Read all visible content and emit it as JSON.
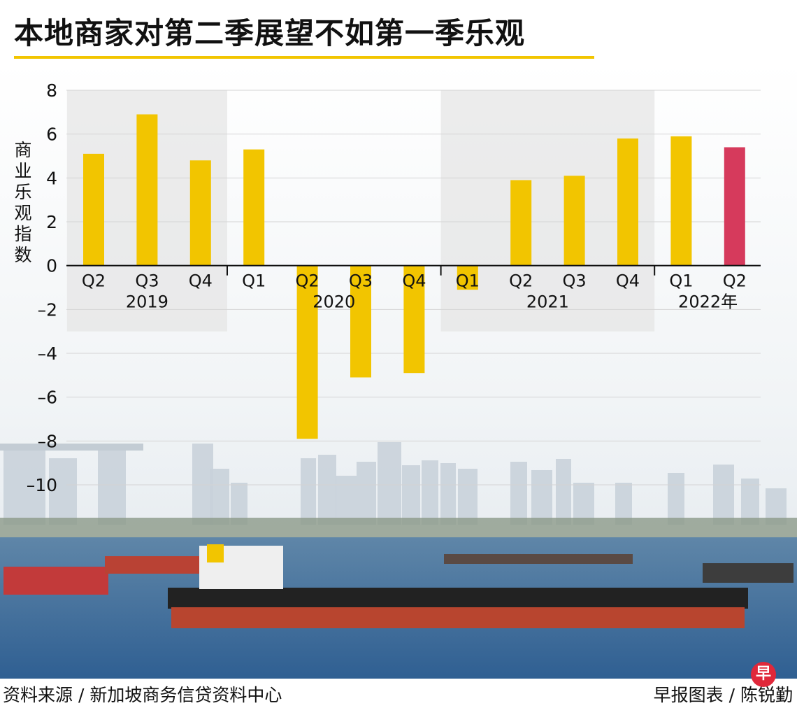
{
  "title": "本地商家对第二季展望不如第一季乐观",
  "ylabel": "商业乐观指数",
  "source": "资料来源 / 新加坡商务信贷资料中心",
  "credit": "早报图表 / 陈锐勤",
  "logo_text": "早",
  "colors": {
    "bar": "#f2c500",
    "bar_highlight": "#d63a5c",
    "title_underline": "#f2c500",
    "shade": "#e6e6e6",
    "sky": "#e9eef2",
    "sea": "#3f6f9c"
  },
  "chart_data": {
    "type": "bar",
    "title": "本地商家对第二季展望不如第一季乐观",
    "ylabel": "商业乐观指数",
    "ylim": [
      -10,
      8
    ],
    "yticks": [
      8,
      6,
      4,
      2,
      0,
      -2,
      -4,
      -6,
      -8,
      -10
    ],
    "ytick_labels": [
      "8",
      "6",
      "4",
      "2",
      "0",
      "–2",
      "–4",
      "–6",
      "–8",
      "–10"
    ],
    "grid": true,
    "categories": [
      "Q2",
      "Q3",
      "Q4",
      "Q1",
      "Q2",
      "Q3",
      "Q4",
      "Q1",
      "Q2",
      "Q3",
      "Q4",
      "Q1",
      "Q2"
    ],
    "values": [
      5.1,
      6.9,
      4.8,
      5.3,
      -7.9,
      -5.1,
      -4.9,
      -1.1,
      3.9,
      4.1,
      5.8,
      5.9,
      5.4
    ],
    "highlight_index": 12,
    "year_groups": [
      {
        "label": "2019",
        "start": 0,
        "end": 2,
        "shaded": true
      },
      {
        "label": "2020",
        "start": 3,
        "end": 6,
        "shaded": false
      },
      {
        "label": "2021",
        "start": 7,
        "end": 10,
        "shaded": true
      },
      {
        "label": "2022年",
        "start": 11,
        "end": 12,
        "shaded": false
      }
    ]
  }
}
